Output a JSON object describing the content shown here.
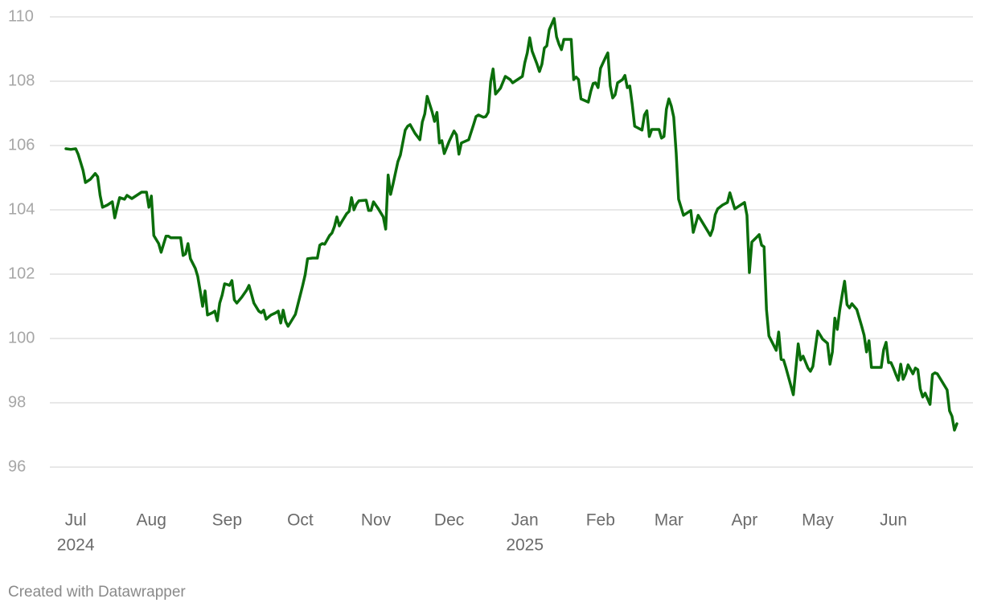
{
  "chart_data": {
    "type": "line",
    "credit": "Created with Datawrapper",
    "color": "#0b6e0b",
    "grid": true,
    "xlim": [
      "2024-06-27",
      "2025-06-27"
    ],
    "ylim": [
      96,
      110
    ],
    "yticks": [
      96,
      98,
      100,
      102,
      104,
      106,
      108,
      110
    ],
    "xticks": [
      {
        "value": "2024-07-01",
        "label": "Jul",
        "sublabel": "2024"
      },
      {
        "value": "2024-08-01",
        "label": "Aug"
      },
      {
        "value": "2024-09-01",
        "label": "Sep"
      },
      {
        "value": "2024-10-01",
        "label": "Oct"
      },
      {
        "value": "2024-11-01",
        "label": "Nov"
      },
      {
        "value": "2024-12-01",
        "label": "Dec"
      },
      {
        "value": "2025-01-01",
        "label": "Jan",
        "sublabel": "2025"
      },
      {
        "value": "2025-02-01",
        "label": "Feb"
      },
      {
        "value": "2025-03-01",
        "label": "Mar"
      },
      {
        "value": "2025-04-01",
        "label": "Apr"
      },
      {
        "value": "2025-05-01",
        "label": "May"
      },
      {
        "value": "2025-06-01",
        "label": "Jun"
      }
    ],
    "x": [
      "2024-06-27",
      "2024-06-29",
      "2024-07-01",
      "2024-07-02",
      "2024-07-04",
      "2024-07-05",
      "2024-07-07",
      "2024-07-09",
      "2024-07-10",
      "2024-07-11",
      "2024-07-12",
      "2024-07-14",
      "2024-07-16",
      "2024-07-17",
      "2024-07-18",
      "2024-07-19",
      "2024-07-21",
      "2024-07-22",
      "2024-07-24",
      "2024-07-26",
      "2024-07-28",
      "2024-07-30",
      "2024-07-31",
      "2024-08-01",
      "2024-08-02",
      "2024-08-04",
      "2024-08-05",
      "2024-08-07",
      "2024-08-08",
      "2024-08-09",
      "2024-08-13",
      "2024-08-14",
      "2024-08-15",
      "2024-08-16",
      "2024-08-17",
      "2024-08-19",
      "2024-08-20",
      "2024-08-21",
      "2024-08-22",
      "2024-08-23",
      "2024-08-24",
      "2024-08-26",
      "2024-08-27",
      "2024-08-28",
      "2024-08-29",
      "2024-08-30",
      "2024-08-31",
      "2024-09-01",
      "2024-09-02",
      "2024-09-03",
      "2024-09-04",
      "2024-09-05",
      "2024-09-07",
      "2024-09-09",
      "2024-09-10",
      "2024-09-11",
      "2024-09-12",
      "2024-09-14",
      "2024-09-15",
      "2024-09-16",
      "2024-09-17",
      "2024-09-19",
      "2024-09-21",
      "2024-09-22",
      "2024-09-23",
      "2024-09-24",
      "2024-09-25",
      "2024-09-26",
      "2024-09-27",
      "2024-09-29",
      "2024-10-02",
      "2024-10-03",
      "2024-10-04",
      "2024-10-06",
      "2024-10-08",
      "2024-10-09",
      "2024-10-10",
      "2024-10-11",
      "2024-10-13",
      "2024-10-14",
      "2024-10-15",
      "2024-10-16",
      "2024-10-17",
      "2024-10-18",
      "2024-10-20",
      "2024-10-21",
      "2024-10-22",
      "2024-10-23",
      "2024-10-24",
      "2024-10-25",
      "2024-10-28",
      "2024-10-29",
      "2024-10-30",
      "2024-10-31",
      "2024-11-02",
      "2024-11-04",
      "2024-11-05",
      "2024-11-06",
      "2024-11-07",
      "2024-11-08",
      "2024-11-10",
      "2024-11-11",
      "2024-11-13",
      "2024-11-14",
      "2024-11-15",
      "2024-11-17",
      "2024-11-19",
      "2024-11-20",
      "2024-11-21",
      "2024-11-22",
      "2024-11-24",
      "2024-11-25",
      "2024-11-26",
      "2024-11-27",
      "2024-11-28",
      "2024-11-29",
      "2024-12-01",
      "2024-12-03",
      "2024-12-04",
      "2024-12-05",
      "2024-12-06",
      "2024-12-09",
      "2024-12-11",
      "2024-12-12",
      "2024-12-13",
      "2024-12-15",
      "2024-12-16",
      "2024-12-17",
      "2024-12-18",
      "2024-12-19",
      "2024-12-20",
      "2024-12-22",
      "2024-12-24",
      "2024-12-26",
      "2024-12-27",
      "2024-12-29",
      "2024-12-31",
      "2025-01-01",
      "2025-01-02",
      "2025-01-03",
      "2025-01-04",
      "2025-01-06",
      "2025-01-07",
      "2025-01-08",
      "2025-01-09",
      "2025-01-10",
      "2025-01-11",
      "2025-01-13",
      "2025-01-14",
      "2025-01-15",
      "2025-01-16",
      "2025-01-17",
      "2025-01-20",
      "2025-01-21",
      "2025-01-22",
      "2025-01-23",
      "2025-01-24",
      "2025-01-27",
      "2025-01-28",
      "2025-01-29",
      "2025-01-30",
      "2025-01-31",
      "2025-02-01",
      "2025-02-03",
      "2025-02-04",
      "2025-02-05",
      "2025-02-06",
      "2025-02-07",
      "2025-02-08",
      "2025-02-10",
      "2025-02-11",
      "2025-02-12",
      "2025-02-13",
      "2025-02-14",
      "2025-02-15",
      "2025-02-18",
      "2025-02-19",
      "2025-02-20",
      "2025-02-21",
      "2025-02-22",
      "2025-02-25",
      "2025-02-26",
      "2025-02-27",
      "2025-02-28",
      "2025-03-01",
      "2025-03-02",
      "2025-03-03",
      "2025-03-04",
      "2025-03-05",
      "2025-03-06",
      "2025-03-07",
      "2025-03-10",
      "2025-03-11",
      "2025-03-13",
      "2025-03-15",
      "2025-03-17",
      "2025-03-18",
      "2025-03-19",
      "2025-03-20",
      "2025-03-21",
      "2025-03-23",
      "2025-03-25",
      "2025-03-26",
      "2025-03-28",
      "2025-04-01",
      "2025-04-02",
      "2025-04-03",
      "2025-04-04",
      "2025-04-06",
      "2025-04-07",
      "2025-04-08",
      "2025-04-09",
      "2025-04-10",
      "2025-04-11",
      "2025-04-14",
      "2025-04-15",
      "2025-04-16",
      "2025-04-17",
      "2025-04-18",
      "2025-04-20",
      "2025-04-21",
      "2025-04-23",
      "2025-04-24",
      "2025-04-25",
      "2025-04-27",
      "2025-04-28",
      "2025-04-29",
      "2025-05-01",
      "2025-05-03",
      "2025-05-05",
      "2025-05-06",
      "2025-05-07",
      "2025-05-08",
      "2025-05-09",
      "2025-05-10",
      "2025-05-11",
      "2025-05-12",
      "2025-05-13",
      "2025-05-14",
      "2025-05-15",
      "2025-05-17",
      "2025-05-19",
      "2025-05-20",
      "2025-05-21",
      "2025-05-22",
      "2025-05-23",
      "2025-05-27",
      "2025-05-28",
      "2025-05-29",
      "2025-05-30",
      "2025-05-31",
      "2025-06-01",
      "2025-06-02",
      "2025-06-03",
      "2025-06-04",
      "2025-06-05",
      "2025-06-06",
      "2025-06-07",
      "2025-06-09",
      "2025-06-10",
      "2025-06-11",
      "2025-06-12",
      "2025-06-13",
      "2025-06-14",
      "2025-06-16",
      "2025-06-17",
      "2025-06-18",
      "2025-06-19",
      "2025-06-21",
      "2025-06-23",
      "2025-06-24",
      "2025-06-25",
      "2025-06-26",
      "2025-06-27"
    ],
    "values": [
      105.9,
      105.88,
      105.9,
      105.73,
      105.23,
      104.85,
      104.95,
      105.13,
      105.03,
      104.45,
      104.08,
      104.15,
      104.25,
      103.75,
      104.08,
      104.38,
      104.33,
      104.45,
      104.35,
      104.45,
      104.55,
      104.55,
      104.08,
      104.43,
      103.2,
      102.95,
      102.68,
      103.18,
      103.18,
      103.13,
      103.13,
      102.58,
      102.63,
      102.95,
      102.48,
      102.18,
      101.93,
      101.48,
      101.0,
      101.48,
      100.73,
      100.8,
      100.85,
      100.55,
      101.1,
      101.35,
      101.7,
      101.68,
      101.65,
      101.8,
      101.2,
      101.1,
      101.28,
      101.5,
      101.65,
      101.38,
      101.1,
      100.85,
      100.8,
      100.88,
      100.6,
      100.73,
      100.8,
      100.85,
      100.48,
      100.88,
      100.53,
      100.38,
      100.5,
      100.75,
      101.65,
      101.98,
      102.48,
      102.5,
      102.5,
      102.9,
      102.95,
      102.93,
      103.2,
      103.28,
      103.48,
      103.78,
      103.5,
      103.63,
      103.88,
      103.95,
      104.38,
      104.0,
      104.18,
      104.28,
      104.3,
      103.98,
      103.98,
      104.25,
      104.03,
      103.78,
      103.4,
      105.08,
      104.48,
      104.8,
      105.5,
      105.7,
      106.48,
      106.6,
      106.65,
      106.38,
      106.18,
      106.73,
      106.98,
      107.53,
      107.05,
      106.75,
      107.03,
      106.08,
      106.15,
      105.75,
      106.13,
      106.45,
      106.33,
      105.73,
      106.08,
      106.18,
      106.65,
      106.9,
      106.95,
      106.88,
      106.9,
      107.03,
      107.98,
      108.38,
      107.6,
      107.78,
      108.15,
      108.05,
      107.95,
      108.05,
      108.15,
      108.58,
      108.88,
      109.35,
      108.93,
      108.53,
      108.3,
      108.53,
      109.03,
      109.1,
      109.6,
      109.95,
      109.38,
      109.15,
      108.98,
      109.3,
      109.3,
      108.05,
      108.13,
      108.05,
      107.45,
      107.35,
      107.68,
      107.93,
      107.95,
      107.8,
      108.4,
      108.73,
      108.88,
      107.85,
      107.48,
      107.58,
      107.95,
      108.05,
      108.18,
      107.8,
      107.85,
      107.28,
      106.6,
      106.48,
      106.95,
      107.08,
      106.28,
      106.5,
      106.5,
      106.23,
      106.28,
      107.13,
      107.45,
      107.23,
      106.88,
      105.78,
      104.33,
      104.08,
      103.83,
      103.98,
      103.3,
      103.83,
      103.58,
      103.33,
      103.2,
      103.4,
      103.85,
      104.03,
      104.15,
      104.23,
      104.53,
      104.03,
      104.23,
      103.83,
      102.05,
      103.0,
      103.15,
      103.23,
      102.9,
      102.85,
      100.9,
      100.08,
      99.63,
      100.2,
      99.35,
      99.33,
      99.08,
      98.53,
      98.25,
      99.83,
      99.33,
      99.45,
      99.08,
      98.98,
      99.13,
      100.23,
      99.98,
      99.85,
      99.2,
      99.58,
      100.63,
      100.28,
      100.88,
      101.35,
      101.78,
      101.05,
      100.95,
      101.08,
      100.9,
      100.38,
      100.1,
      99.58,
      99.93,
      99.1,
      99.1,
      99.65,
      99.88,
      99.25,
      99.25,
      99.08,
      98.88,
      98.7,
      99.2,
      98.73,
      98.9,
      99.18,
      98.9,
      99.08,
      99.03,
      98.43,
      98.18,
      98.3,
      97.95,
      98.88,
      98.93,
      98.9,
      98.65,
      98.4,
      97.75,
      97.58,
      97.15,
      97.35
    ]
  }
}
